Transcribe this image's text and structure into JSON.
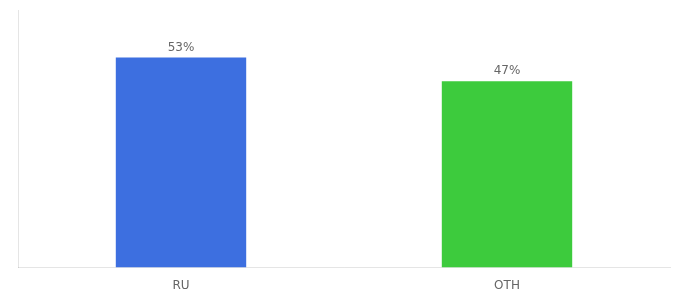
{
  "chart_data": {
    "type": "bar",
    "categories": [
      "RU",
      "OTH"
    ],
    "values": [
      53,
      47
    ],
    "value_labels": [
      "53%",
      "47%"
    ],
    "colors": [
      "#3D6FE0",
      "#3DCB3D"
    ],
    "ylim": [
      0,
      65
    ],
    "data_labels": true,
    "tick_labels": "x",
    "grid": false
  }
}
